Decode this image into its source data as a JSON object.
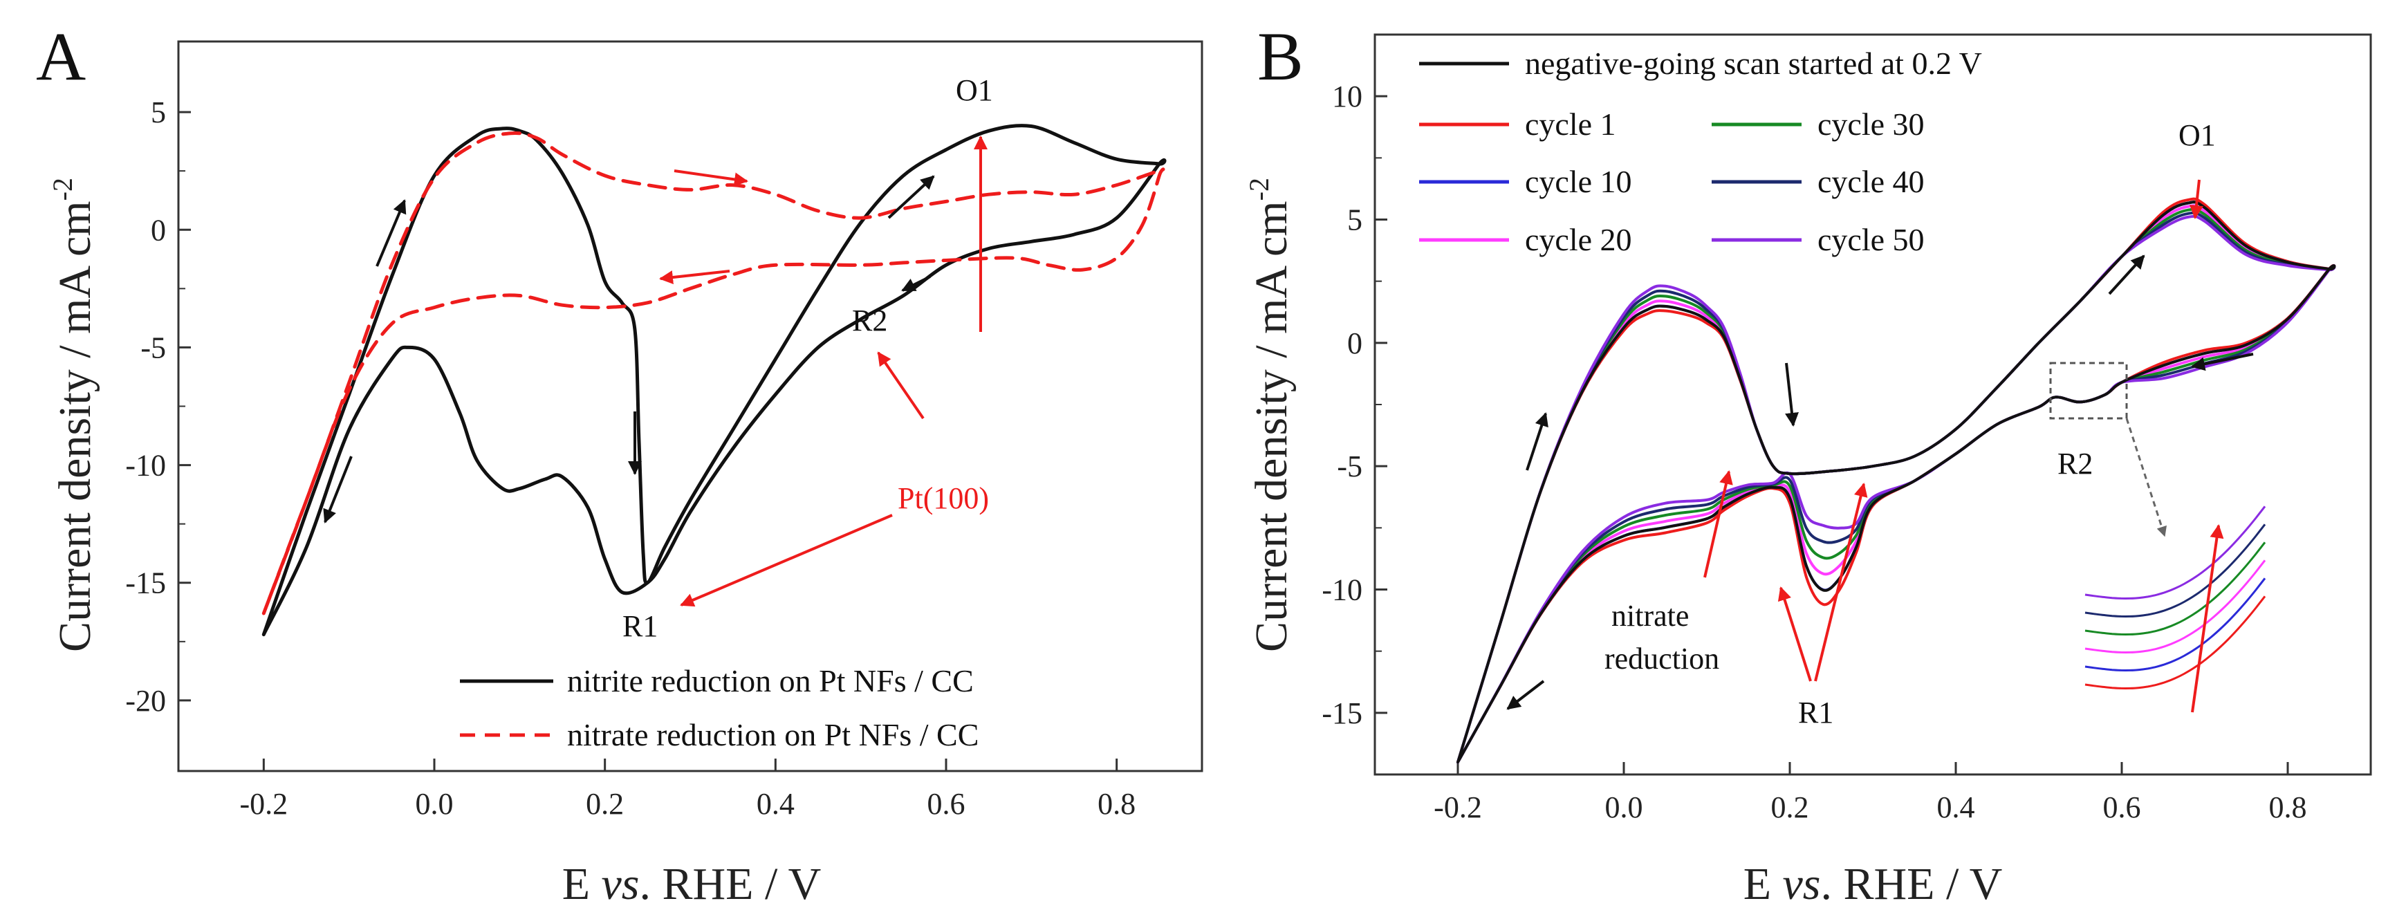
{
  "colors": {
    "black": "#111111",
    "red": "#ee1c1c",
    "blue": "#2a2ad8",
    "green": "#178a24",
    "magenta": "#ff3cff",
    "navy": "#1c2a6e",
    "purple": "#8a2be2",
    "gray": "#666666"
  },
  "chart_data": [
    {
      "panel": "A",
      "type": "line",
      "xlabel_prefix": "E ",
      "xlabel_italic": "vs",
      "xlabel_suffix": ". RHE / V",
      "ylabel": "Current density / mA cm",
      "ylabel_sup": "-2",
      "xlim": [
        -0.3,
        0.9
      ],
      "ylim": [
        -23,
        8
      ],
      "xticks": [
        "-0.2",
        "0.0",
        "0.2",
        "0.4",
        "0.6",
        "0.8"
      ],
      "yticks": [
        "5",
        "0",
        "-5",
        "-10",
        "-15",
        "-20"
      ],
      "series": [
        {
          "name": "nitrite reduction on Pt NFs / CC",
          "style": "solid",
          "color": "black",
          "x": [
            -0.2,
            -0.15,
            -0.1,
            -0.05,
            0.0,
            0.05,
            0.08,
            0.1,
            0.12,
            0.15,
            0.18,
            0.2,
            0.22,
            0.235,
            0.24,
            0.245,
            0.25,
            0.27,
            0.3,
            0.35,
            0.4,
            0.45,
            0.5,
            0.55,
            0.6,
            0.65,
            0.7,
            0.75,
            0.8,
            0.85,
            0.85,
            0.8,
            0.75,
            0.7,
            0.65,
            0.6,
            0.55,
            0.5,
            0.45,
            0.4,
            0.35,
            0.3,
            0.27,
            0.25,
            0.22,
            0.2,
            0.18,
            0.15,
            0.13,
            0.1,
            0.08,
            0.05,
            0.03,
            0.0,
            -0.03,
            -0.05,
            -0.1,
            -0.15,
            -0.2
          ],
          "y": [
            -17.2,
            -12,
            -7,
            -2,
            2.3,
            4.0,
            4.3,
            4.2,
            3.8,
            2.4,
            0.2,
            -2.2,
            -3.1,
            -4.2,
            -9,
            -13.8,
            -15.0,
            -13.5,
            -11.5,
            -8.5,
            -5.5,
            -2.5,
            0.3,
            2.3,
            3.4,
            4.2,
            4.4,
            3.7,
            3.0,
            2.8,
            2.8,
            0.5,
            -0.2,
            -0.5,
            -0.8,
            -1.5,
            -2.8,
            -3.8,
            -5.0,
            -7.0,
            -9.3,
            -12.0,
            -14.0,
            -15.0,
            -15.4,
            -14.0,
            -11.8,
            -10.5,
            -10.6,
            -11.0,
            -11.0,
            -9.8,
            -7.8,
            -5.5,
            -5.0,
            -5.5,
            -8.5,
            -13.5,
            -17.2
          ]
        },
        {
          "name": "nitrate reduction on Pt NFs / CC",
          "style": "dashed",
          "color": "red",
          "x": [
            -0.2,
            -0.15,
            -0.1,
            -0.05,
            0.0,
            0.05,
            0.09,
            0.12,
            0.15,
            0.2,
            0.25,
            0.3,
            0.35,
            0.4,
            0.45,
            0.5,
            0.55,
            0.6,
            0.65,
            0.7,
            0.75,
            0.8,
            0.85,
            0.85,
            0.83,
            0.8,
            0.76,
            0.72,
            0.68,
            0.6,
            0.55,
            0.5,
            0.4,
            0.35,
            0.3,
            0.25,
            0.2,
            0.15,
            0.1,
            0.05,
            0.0,
            -0.05,
            -0.1,
            -0.15,
            -0.2
          ],
          "y": [
            -16.3,
            -11.5,
            -6.5,
            -1.5,
            2.2,
            3.7,
            4.1,
            3.9,
            3.2,
            2.3,
            1.9,
            1.7,
            1.9,
            1.5,
            0.8,
            0.5,
            0.9,
            1.2,
            1.5,
            1.6,
            1.5,
            1.9,
            2.5,
            2.3,
            0.2,
            -1.2,
            -1.7,
            -1.5,
            -1.2,
            -1.3,
            -1.4,
            -1.5,
            -1.5,
            -1.9,
            -2.5,
            -3.1,
            -3.3,
            -3.2,
            -2.8,
            -2.9,
            -3.3,
            -4.0,
            -6.8,
            -11.5,
            -16.3
          ]
        }
      ],
      "annotations": [
        {
          "text": "O1",
          "color": "black"
        },
        {
          "text": "R1",
          "color": "black"
        },
        {
          "text": "R2",
          "color": "black"
        },
        {
          "text": "Pt(100)",
          "color": "red"
        }
      ]
    },
    {
      "panel": "B",
      "type": "line",
      "xlabel_prefix": "E ",
      "xlabel_italic": "vs",
      "xlabel_suffix": ". RHE / V",
      "ylabel": "Current density / mA cm",
      "ylabel_sup": "-2",
      "xlim": [
        -0.3,
        0.9
      ],
      "ylim": [
        -17.5,
        12.5
      ],
      "xticks": [
        "-0.2",
        "0.0",
        "0.2",
        "0.4",
        "0.6",
        "0.8"
      ],
      "yticks": [
        "10",
        "5",
        "0",
        "-5",
        "-10",
        "-15"
      ],
      "series": [
        {
          "name": "negative-going scan started at 0.2 V",
          "color": "black",
          "cycle": 0
        },
        {
          "name": "cycle 1",
          "color": "red",
          "cycle": 1
        },
        {
          "name": "cycle 10",
          "color": "blue",
          "cycle": 10
        },
        {
          "name": "cycle 20",
          "color": "magenta",
          "cycle": 20
        },
        {
          "name": "cycle 30",
          "color": "green",
          "cycle": 30
        },
        {
          "name": "cycle 40",
          "color": "navy",
          "cycle": 40
        },
        {
          "name": "cycle 50",
          "color": "purple",
          "cycle": 50
        }
      ],
      "base_curve": {
        "x": [
          -0.2,
          -0.15,
          -0.1,
          -0.05,
          0.0,
          0.03,
          0.05,
          0.08,
          0.1,
          0.12,
          0.14,
          0.16,
          0.18,
          0.2,
          0.25,
          0.3,
          0.35,
          0.4,
          0.45,
          0.5,
          0.55,
          0.6,
          0.65,
          0.68,
          0.7,
          0.75,
          0.8,
          0.85,
          0.85,
          0.8,
          0.75,
          0.7,
          0.65,
          0.6,
          0.58,
          0.55,
          0.52,
          0.5,
          0.45,
          0.4,
          0.35,
          0.3,
          0.28,
          0.26,
          0.24,
          0.22,
          0.2,
          0.18,
          0.15,
          0.12,
          0.1,
          0.05,
          0.0,
          -0.05,
          -0.1,
          -0.15,
          -0.2
        ],
        "y": [
          -17.0,
          -11.5,
          -6.0,
          -2.0,
          0.5,
          1.2,
          1.3,
          1.1,
          0.8,
          0.2,
          -1.5,
          -3.5,
          -5.0,
          -5.3,
          -5.2,
          -5.0,
          -4.6,
          -3.5,
          -1.8,
          0.0,
          1.7,
          3.5,
          5.3,
          5.8,
          5.6,
          4.0,
          3.3,
          3.0,
          3.0,
          1.0,
          0.0,
          -0.3,
          -0.8,
          -1.6,
          -2.1,
          -2.4,
          -2.2,
          -2.6,
          -3.3,
          -4.5,
          -5.6,
          -6.6,
          -8.5,
          -10.0,
          -10.6,
          -9.5,
          -6.5,
          -5.9,
          -6.2,
          -6.8,
          -7.3,
          -7.7,
          -8.0,
          -8.9,
          -11.0,
          -14.0,
          -17.0
        ]
      },
      "annotations": [
        {
          "text": "O1",
          "color": "black"
        },
        {
          "text": "R1",
          "color": "black"
        },
        {
          "text": "R2",
          "color": "black"
        },
        {
          "text": "nitrate",
          "color": "black"
        },
        {
          "text": "reduction",
          "color": "black"
        }
      ]
    }
  ]
}
